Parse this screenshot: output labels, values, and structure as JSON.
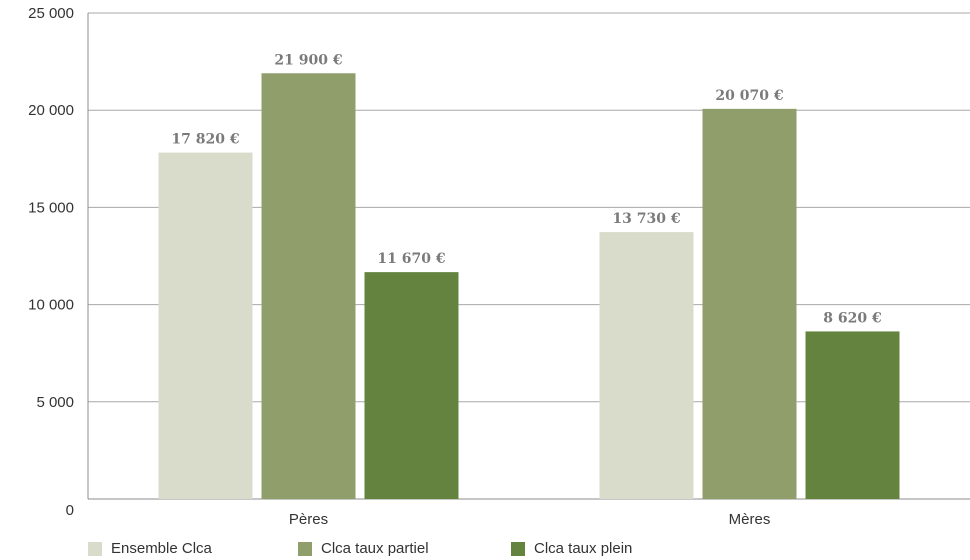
{
  "chart_data": {
    "type": "bar",
    "categories": [
      "Pères",
      "Mères"
    ],
    "series": [
      {
        "name": "Ensemble Clca",
        "values": [
          17820,
          13730
        ],
        "labels": [
          "17 820 €",
          "13 730 €"
        ],
        "color": "#d9dccb"
      },
      {
        "name": "Clca taux partiel",
        "values": [
          21900,
          20070
        ],
        "labels": [
          "21 900 €",
          "20 070 €"
        ],
        "color": "#8f9e6b"
      },
      {
        "name": "Clca taux plein",
        "values": [
          11670,
          8620
        ],
        "labels": [
          "11 670 €",
          "8 620 €"
        ],
        "color": "#64833e"
      }
    ],
    "ylim": [
      0,
      25000
    ],
    "yticks": [
      0,
      5000,
      10000,
      15000,
      20000,
      25000
    ],
    "ytick_labels": [
      "0",
      "5 000",
      "10 000",
      "15 000",
      "20 000",
      "25 000"
    ],
    "grid": true,
    "legend_position": "bottom"
  }
}
